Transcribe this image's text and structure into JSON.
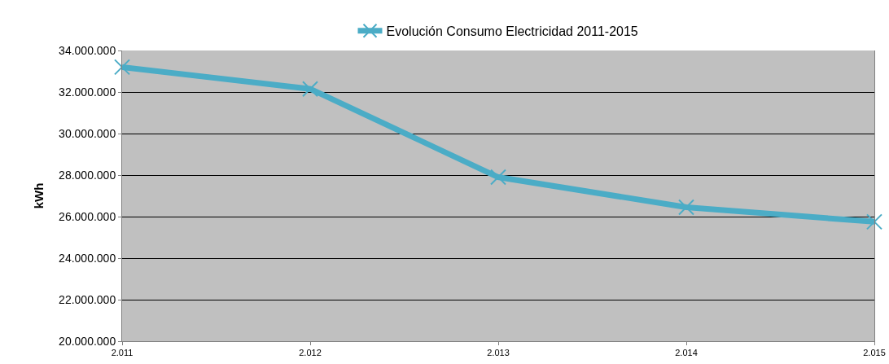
{
  "chart_data": {
    "type": "line",
    "ylabel": "kWh",
    "x": [
      2011,
      2012,
      2013,
      2014,
      2015
    ],
    "series": [
      {
        "name": "Evolución Consumo Electricidad 2011-2015",
        "color": "#4bacc6",
        "values": [
          33200000,
          32150000,
          27900000,
          26450000,
          25750000
        ]
      }
    ],
    "xlim": [
      2011,
      2015
    ],
    "xticks": [
      {
        "value": 2011,
        "label": "2.011"
      },
      {
        "value": 2012,
        "label": "2.012"
      },
      {
        "value": 2013,
        "label": "2.013"
      },
      {
        "value": 2014,
        "label": "2.014"
      },
      {
        "value": 2015,
        "label": "2.015"
      }
    ],
    "ylim": [
      20000000,
      34000000
    ],
    "yticks": [
      {
        "value": 20000000,
        "label": "20.000.000"
      },
      {
        "value": 22000000,
        "label": "22.000.000"
      },
      {
        "value": 24000000,
        "label": "24.000.000"
      },
      {
        "value": 26000000,
        "label": "26.000.000"
      },
      {
        "value": 28000000,
        "label": "28.000.000"
      },
      {
        "value": 30000000,
        "label": "30.000.000"
      },
      {
        "value": 32000000,
        "label": "32.000.000"
      },
      {
        "value": 34000000,
        "label": "34.000.000"
      }
    ],
    "grid": "y",
    "legend": "top",
    "marker": "cross",
    "line_style": "solid"
  }
}
